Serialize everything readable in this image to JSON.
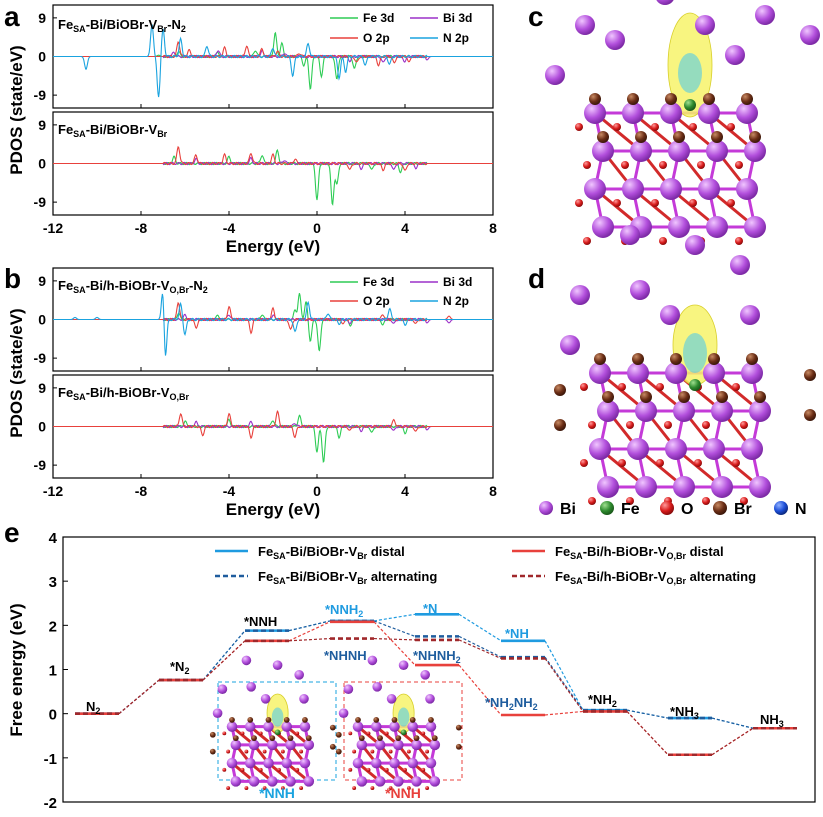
{
  "colors": {
    "fe": "#2ecc55",
    "bi": "#9b30c8",
    "o": "#e8413c",
    "n": "#1aa3df",
    "blue": "#1f9be0",
    "darkblue": "#1f5d9e",
    "red": "#e8413c",
    "darkred": "#a0282b",
    "iso": "#f7f36a",
    "bi_atom": "#b24fdc",
    "o_atom": "#d81b1b",
    "br_atom": "#6b2e16",
    "fe_atom": "#2e8a2e",
    "n_atom": "#1d4fd8"
  },
  "panel_letters": {
    "a": "a",
    "b": "b",
    "c": "c",
    "d": "d",
    "e": "e"
  },
  "pdos": {
    "ylabel": "PDOS (state/eV)",
    "xlabel": "Energy (eV)",
    "xticks": [
      "-12",
      "-8",
      "-4",
      "0",
      "4",
      "8"
    ],
    "yticks": [
      "9",
      "0",
      "-9"
    ],
    "legend": {
      "fe": "Fe 3d",
      "bi": "Bi 3d",
      "o": "O 2p",
      "n": "N 2p"
    },
    "a_top_label": {
      "p1": "Fe",
      "s1": "SA",
      "p2": "-Bi/BiOBr-V",
      "s2": "Br",
      "p3": "-N",
      "s3": "2",
      "p4": ""
    },
    "a_bot_label": {
      "p1": "Fe",
      "s1": "SA",
      "p2": "-Bi/BiOBr-V",
      "s2": "Br",
      "p3": "",
      "s3": "",
      "p4": ""
    },
    "b_top_label": {
      "p1": "Fe",
      "s1": "SA",
      "p2": "-Bi/h-BiOBr-V",
      "s2": "O,Br",
      "p3": "-N",
      "s3": "2",
      "p4": ""
    },
    "b_bot_label": {
      "p1": "Fe",
      "s1": "SA",
      "p2": "-Bi/h-BiOBr-V",
      "s2": "O,Br",
      "p3": "",
      "s3": "",
      "p4": ""
    }
  },
  "atom_legend": [
    "Bi",
    "Fe",
    "O",
    "Br",
    "N"
  ],
  "chart_data": [
    {
      "type": "line",
      "title": "FeSA-Bi/BiOBr-VBr-N2",
      "xlabel": "Energy (eV)",
      "ylabel": "PDOS (state/eV)",
      "xlim": [
        -12,
        8
      ],
      "ylim": [
        -12,
        12
      ],
      "series": [
        {
          "name": "Fe 3d",
          "peaks": [
            [
              -7.2,
              0.3
            ],
            [
              -6.3,
              1.2
            ],
            [
              -4.5,
              1.0
            ],
            [
              -2.8,
              1.5
            ],
            [
              -1.9,
              5.5
            ],
            [
              -1.6,
              3.0
            ],
            [
              -0.6,
              -2.0
            ],
            [
              -0.3,
              -7.5
            ],
            [
              0.2,
              -4.5
            ],
            [
              0.9,
              -5.5
            ],
            [
              1.7,
              -3.0
            ]
          ]
        },
        {
          "name": "Bi 3d",
          "peaks": [
            [
              -6.5,
              1.0
            ],
            [
              -4.5,
              1.5
            ],
            [
              -2.5,
              1.2
            ],
            [
              -1.5,
              0.8
            ],
            [
              1.5,
              -1.0
            ],
            [
              3.0,
              -1.5
            ],
            [
              4.0,
              -1.2
            ],
            [
              5.0,
              -0.8
            ]
          ]
        },
        {
          "name": "O 2p",
          "peaks": [
            [
              -6.3,
              3.5
            ],
            [
              -5.8,
              1.5
            ],
            [
              -4.2,
              2.0
            ],
            [
              -3.2,
              2.5
            ],
            [
              -2.5,
              1.8
            ],
            [
              -1.8,
              1.2
            ],
            [
              -0.8,
              0.8
            ],
            [
              1.8,
              -1.5
            ],
            [
              2.8,
              -2.0
            ],
            [
              3.5,
              -1.5
            ],
            [
              4.2,
              -1.2
            ]
          ]
        },
        {
          "name": "N 2p",
          "peaks": [
            [
              -10.5,
              -3.0
            ],
            [
              -7.5,
              7.5
            ],
            [
              -7.2,
              -9.5
            ],
            [
              -7.0,
              6.5
            ],
            [
              -6.2,
              4.0
            ],
            [
              -5.0,
              2.5
            ],
            [
              -2.0,
              2.0
            ],
            [
              -1.1,
              -4.5
            ],
            [
              -0.4,
              3.0
            ],
            [
              1.0,
              -5.0
            ],
            [
              1.3,
              -3.5
            ],
            [
              2.2,
              -2.0
            ],
            [
              3.3,
              -1.8
            ]
          ]
        }
      ]
    },
    {
      "type": "line",
      "title": "FeSA-Bi/BiOBr-VBr",
      "xlabel": "Energy (eV)",
      "ylabel": "PDOS (state/eV)",
      "xlim": [
        -12,
        8
      ],
      "ylim": [
        -12,
        12
      ],
      "series": [
        {
          "name": "Fe 3d",
          "peaks": [
            [
              -6.5,
              1.5
            ],
            [
              -4.0,
              1.5
            ],
            [
              -2.5,
              2.0
            ],
            [
              -1.8,
              3.0
            ],
            [
              0.0,
              -8.5
            ],
            [
              0.7,
              -9.5
            ],
            [
              0.9,
              -5.0
            ],
            [
              2.5,
              -1.5
            ],
            [
              3.8,
              -2.0
            ]
          ]
        },
        {
          "name": "Bi 3d",
          "peaks": [
            [
              -5.5,
              1.0
            ],
            [
              -3.0,
              1.2
            ],
            [
              -1.5,
              0.8
            ],
            [
              2.0,
              -1.2
            ],
            [
              3.5,
              -1.5
            ],
            [
              4.5,
              -1.0
            ]
          ]
        },
        {
          "name": "O 2p",
          "peaks": [
            [
              -6.3,
              4.0
            ],
            [
              -5.5,
              2.0
            ],
            [
              -4.2,
              2.0
            ],
            [
              -3.0,
              2.5
            ],
            [
              -2.0,
              2.0
            ],
            [
              -1.0,
              1.0
            ],
            [
              1.5,
              -1.5
            ],
            [
              3.0,
              -1.5
            ],
            [
              4.0,
              -1.8
            ]
          ]
        }
      ]
    },
    {
      "type": "line",
      "title": "FeSA-Bi/h-BiOBr-VO,Br-N2",
      "xlabel": "Energy (eV)",
      "ylabel": "PDOS (state/eV)",
      "xlim": [
        -12,
        8
      ],
      "ylim": [
        -12,
        12
      ],
      "series": [
        {
          "name": "Fe 3d",
          "peaks": [
            [
              -6.3,
              1.5
            ],
            [
              -4.5,
              1.0
            ],
            [
              -2.5,
              1.2
            ],
            [
              -1.0,
              2.0
            ],
            [
              -0.8,
              6.0
            ],
            [
              -0.5,
              4.0
            ],
            [
              -0.3,
              -5.0
            ],
            [
              0.1,
              -7.5
            ],
            [
              1.5,
              -1.5
            ],
            [
              3.0,
              -1.2
            ]
          ]
        },
        {
          "name": "Bi 3d",
          "peaks": [
            [
              -6.0,
              1.0
            ],
            [
              -4.0,
              1.2
            ],
            [
              -2.0,
              1.0
            ],
            [
              1.5,
              -0.8
            ],
            [
              3.5,
              -1.0
            ],
            [
              5.0,
              -0.8
            ],
            [
              6.0,
              -0.8
            ]
          ]
        },
        {
          "name": "O 2p",
          "peaks": [
            [
              -6.3,
              4.0
            ],
            [
              -5.5,
              -2.0
            ],
            [
              -4.0,
              3.0
            ],
            [
              -3.0,
              -3.0
            ],
            [
              -2.0,
              2.5
            ],
            [
              -1.2,
              -2.5
            ],
            [
              1.2,
              -1.0
            ],
            [
              3.0,
              1.2
            ],
            [
              4.5,
              -1.0
            ],
            [
              6.0,
              0.8
            ]
          ]
        },
        {
          "name": "N 2p",
          "peaks": [
            [
              -11.0,
              0.5
            ],
            [
              -10.0,
              0.5
            ],
            [
              -7.0,
              8.0
            ],
            [
              -6.9,
              -10.0
            ],
            [
              -6.2,
              3.5
            ],
            [
              -6.0,
              -3.5
            ],
            [
              -1.0,
              -3.0
            ],
            [
              -0.4,
              4.0
            ],
            [
              0.5,
              1.5
            ],
            [
              1.0,
              -1.0
            ],
            [
              3.3,
              2.5
            ],
            [
              4.0,
              -1.2
            ]
          ]
        }
      ]
    },
    {
      "type": "line",
      "title": "FeSA-Bi/h-BiOBr-VO,Br",
      "xlabel": "Energy (eV)",
      "ylabel": "PDOS (state/eV)",
      "xlim": [
        -12,
        8
      ],
      "ylim": [
        -12,
        12
      ],
      "series": [
        {
          "name": "Fe 3d",
          "peaks": [
            [
              -6.0,
              1.2
            ],
            [
              -4.0,
              1.5
            ],
            [
              -2.0,
              1.5
            ],
            [
              -0.8,
              2.5
            ],
            [
              0.0,
              -6.0
            ],
            [
              0.3,
              -8.5
            ],
            [
              1.0,
              -2.5
            ],
            [
              2.5,
              -1.5
            ],
            [
              4.0,
              -1.5
            ]
          ]
        },
        {
          "name": "Bi 3d",
          "peaks": [
            [
              -5.5,
              1.0
            ],
            [
              -3.0,
              1.0
            ],
            [
              -1.0,
              0.8
            ],
            [
              2.0,
              -1.0
            ],
            [
              3.5,
              -1.0
            ],
            [
              5.0,
              -0.8
            ]
          ]
        },
        {
          "name": "O 2p",
          "peaks": [
            [
              -6.2,
              3.0
            ],
            [
              -5.2,
              -2.0
            ],
            [
              -4.0,
              3.0
            ],
            [
              -3.0,
              -2.5
            ],
            [
              -1.8,
              3.5
            ],
            [
              -1.0,
              -2.5
            ],
            [
              1.5,
              -1.0
            ],
            [
              3.5,
              1.5
            ],
            [
              4.5,
              -1.2
            ]
          ]
        }
      ]
    },
    {
      "type": "line",
      "title": "",
      "ylabel": "Free energy (eV)",
      "ylim": [
        -2,
        4
      ],
      "yticks": [
        "4",
        "3",
        "2",
        "1",
        "0",
        "-1",
        "-2"
      ],
      "legend": [
        {
          "p1": "Fe",
          "s1": "SA",
          "p2": "-Bi/BiOBr-V",
          "s2": "Br",
          "p3": " distal",
          "style": "blue-solid"
        },
        {
          "p1": "Fe",
          "s1": "SA",
          "p2": "-Bi/BiOBr-V",
          "s2": "Br",
          "p3": " alternating",
          "style": "blue-dashed"
        },
        {
          "p1": "Fe",
          "s1": "SA",
          "p2": "-Bi/h-BiOBr-V",
          "s2": "O,Br",
          "p3": " distal",
          "style": "red-solid"
        },
        {
          "p1": "Fe",
          "s1": "SA",
          "p2": "-Bi/h-BiOBr-V",
          "s2": "O,Br",
          "p3": " alternating",
          "style": "red-dashed"
        }
      ],
      "series": [
        {
          "name": "FeSA-Bi/BiOBr-VBr distal",
          "steps": [
            0,
            1,
            2,
            3,
            4,
            5,
            6,
            7,
            8
          ],
          "values": [
            0.0,
            0.76,
            1.88,
            2.1,
            2.25,
            1.65,
            0.08,
            -0.1,
            -0.33
          ]
        },
        {
          "name": "FeSA-Bi/BiOBr-VBr alternating",
          "steps": [
            0,
            1,
            2,
            3,
            4,
            5,
            6,
            7,
            8
          ],
          "values": [
            0.0,
            0.76,
            1.88,
            2.1,
            1.75,
            1.28,
            0.08,
            -0.1,
            -0.33
          ]
        },
        {
          "name": "FeSA-Bi/h-BiOBr-VO,Br distal",
          "steps": [
            0,
            1,
            2,
            3,
            4,
            5,
            6,
            7,
            8
          ],
          "values": [
            0.0,
            0.76,
            1.65,
            2.08,
            1.1,
            -0.03,
            0.05,
            -0.93,
            -0.33
          ]
        },
        {
          "name": "FeSA-Bi/h-BiOBr-VO,Br alternating",
          "steps": [
            0,
            1,
            2,
            3,
            4,
            5,
            6,
            7,
            8
          ],
          "values": [
            0.0,
            0.76,
            1.65,
            1.7,
            1.67,
            1.25,
            0.05,
            -0.93,
            -0.33
          ]
        }
      ],
      "state_labels": {
        "n2": "N",
        "n2_sub": "2",
        "star_n2": "*N",
        "star_n2_sub": "2",
        "nnh": "*NNH",
        "nnh2": "*NNH",
        "nnh2_sub": "2",
        "nhnh": "*NHNH",
        "n": "*N",
        "nhnh2": "*NHNH",
        "nhnh2_sub": "2",
        "nh": "*NH",
        "nh2nh2_a": "*NH",
        "nh2nh2_s1": "2",
        "nh2nh2_b": "NH",
        "nh2nh2_s2": "2",
        "nh2": "*NH",
        "nh2_sub": "2",
        "nh3": "*NH",
        "nh3_sub": "3",
        "nh3_final": "NH",
        "nh3_final_sub": "3"
      },
      "inset_labels": {
        "left": "*NNH",
        "right": "*NNH"
      }
    }
  ]
}
